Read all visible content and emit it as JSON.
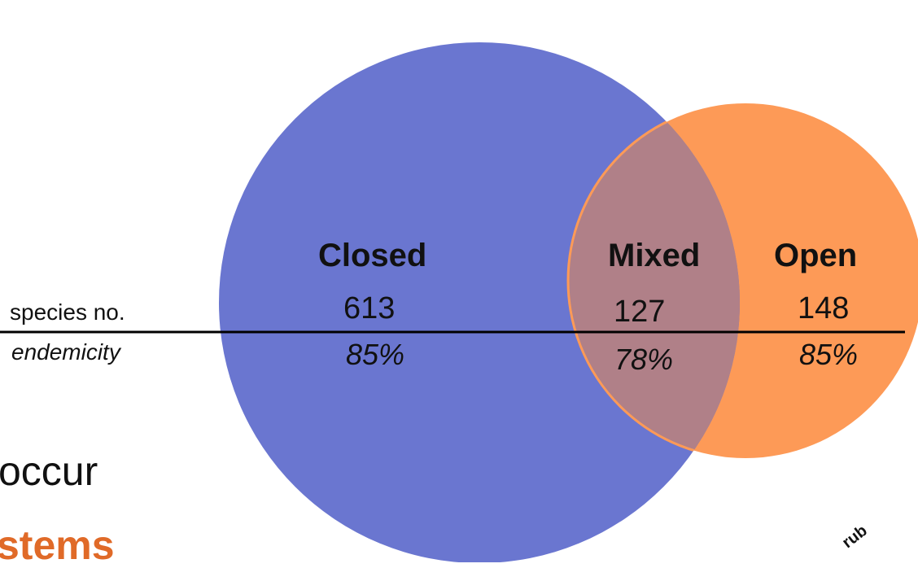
{
  "colors": {
    "closed": "#6a76d0",
    "open": "#fd9a57",
    "mixed": "#b08088",
    "line": "#000000",
    "accent_text": "#e06a28"
  },
  "row_labels": {
    "species": "species no.",
    "endemicity": "endemicity"
  },
  "sets": [
    {
      "name": "Closed",
      "species": "613",
      "endemicity": "85%"
    },
    {
      "name": "Mixed",
      "species": "127",
      "endemicity": "78%"
    },
    {
      "name": "Open",
      "species": "148",
      "endemicity": "85%"
    }
  ],
  "background": {
    "text_occur": "occur",
    "text_stems": "stems",
    "text_rub": "rub"
  }
}
